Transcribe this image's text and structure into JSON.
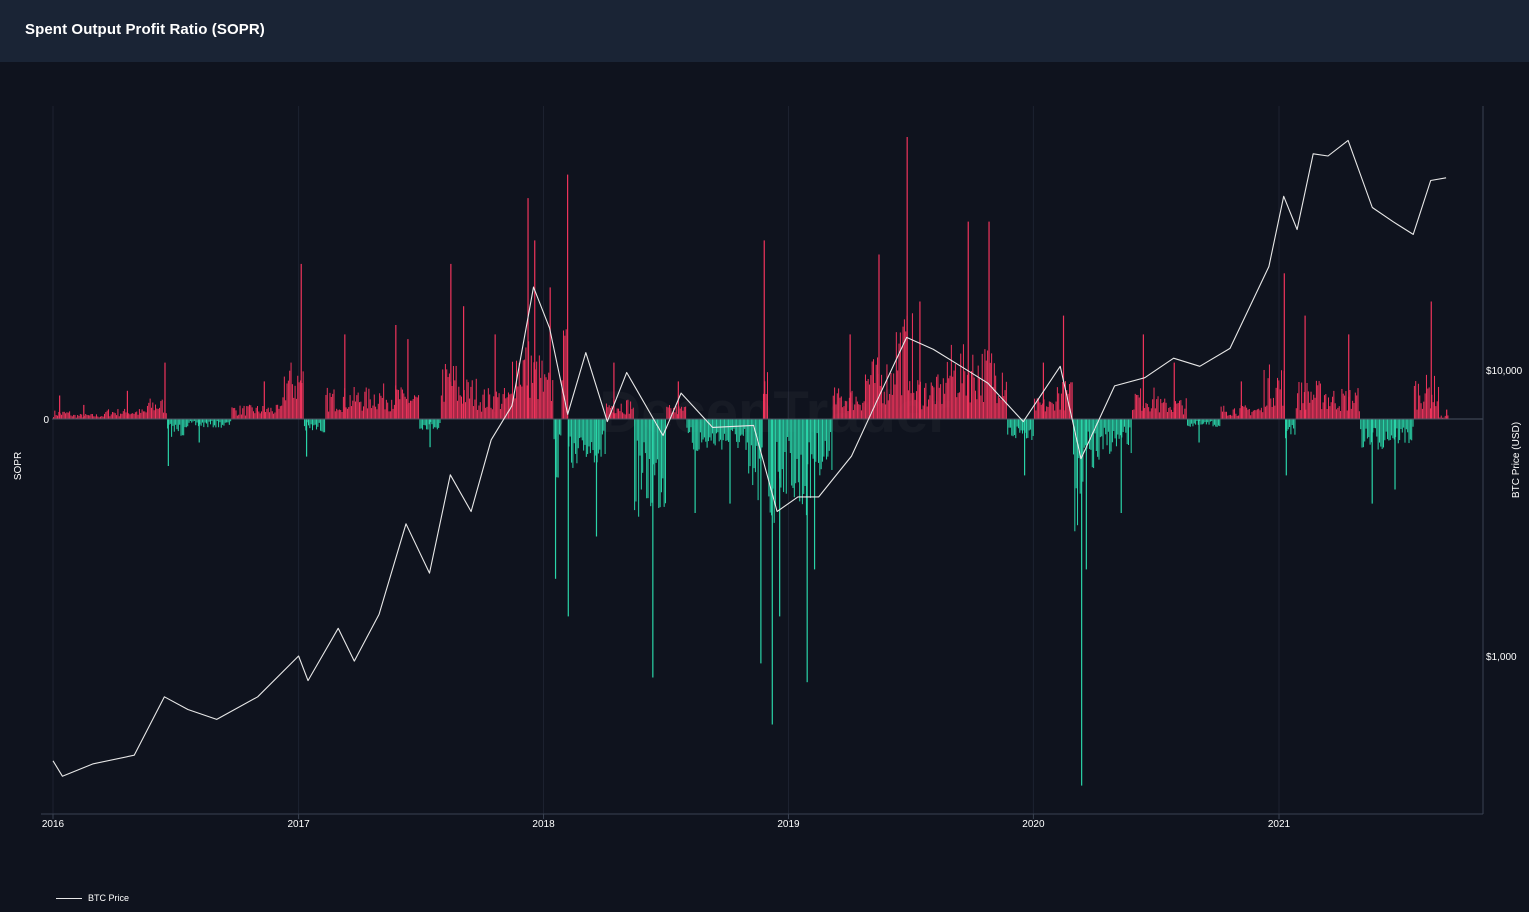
{
  "header": {
    "title": "Spent Output Profit Ratio (SOPR)"
  },
  "legend": {
    "btc_price_label": "BTC Price"
  },
  "colors": {
    "background": "#0f131e",
    "header_bg": "#1a2435",
    "positive_bar": "#f0345c",
    "negative_bar": "#2ad4a8",
    "price_line": "#e8e8e8",
    "grid": "#1c2230"
  },
  "chart_data": {
    "type": "bar",
    "title": "Spent Output Profit Ratio (SOPR)",
    "ylabel": "SOPR",
    "y2label": "BTC Price (USD)",
    "y2scale": "log",
    "xlabel": "",
    "x_ticks": [
      "2016",
      "2017",
      "2018",
      "2019",
      "2020",
      "2021"
    ],
    "y_ticks": [
      "0"
    ],
    "y2_ticks": [
      "$1,000",
      "$10,000"
    ],
    "grid": "vertical",
    "legend": "bottom-left",
    "series": [
      {
        "kind": "bar",
        "note": "SOPR deviation bars, positive (red) above 0 and negative (green) below 0, relative scale",
        "points": [
          [
            "2016-01-10",
            0.05
          ],
          [
            "2016-02-15",
            0.03
          ],
          [
            "2016-04-20",
            0.06
          ],
          [
            "2016-06-15",
            0.12
          ],
          [
            "2016-06-20",
            -0.1
          ],
          [
            "2016-08-05",
            -0.05
          ],
          [
            "2016-11-10",
            0.08
          ],
          [
            "2017-01-04",
            0.33
          ],
          [
            "2017-01-12",
            -0.08
          ],
          [
            "2017-03-10",
            0.18
          ],
          [
            "2017-05-25",
            0.2
          ],
          [
            "2017-06-12",
            0.17
          ],
          [
            "2017-07-15",
            -0.06
          ],
          [
            "2017-08-15",
            0.33
          ],
          [
            "2017-09-03",
            0.24
          ],
          [
            "2017-10-20",
            0.18
          ],
          [
            "2017-12-08",
            0.47
          ],
          [
            "2017-12-18",
            0.38
          ],
          [
            "2018-01-10",
            0.28
          ],
          [
            "2018-01-18",
            -0.34
          ],
          [
            "2018-02-05",
            0.52
          ],
          [
            "2018-02-06",
            -0.42
          ],
          [
            "2018-03-20",
            -0.25
          ],
          [
            "2018-04-15",
            0.12
          ],
          [
            "2018-06-12",
            -0.55
          ],
          [
            "2018-07-20",
            0.08
          ],
          [
            "2018-08-14",
            -0.2
          ],
          [
            "2018-10-05",
            -0.18
          ],
          [
            "2018-11-20",
            -0.52
          ],
          [
            "2018-11-25",
            0.38
          ],
          [
            "2018-12-07",
            -0.65
          ],
          [
            "2018-12-18",
            -0.42
          ],
          [
            "2019-01-28",
            -0.56
          ],
          [
            "2019-02-08",
            -0.32
          ],
          [
            "2019-04-02",
            0.18
          ],
          [
            "2019-05-15",
            0.35
          ],
          [
            "2019-06-26",
            0.6
          ],
          [
            "2019-07-15",
            0.25
          ],
          [
            "2019-09-25",
            0.42
          ],
          [
            "2019-10-26",
            0.42
          ],
          [
            "2019-12-18",
            -0.12
          ],
          [
            "2020-01-15",
            0.12
          ],
          [
            "2020-02-14",
            0.22
          ],
          [
            "2020-03-12",
            -0.78
          ],
          [
            "2020-03-19",
            -0.32
          ],
          [
            "2020-05-10",
            -0.2
          ],
          [
            "2020-06-12",
            0.18
          ],
          [
            "2020-07-28",
            0.12
          ],
          [
            "2020-09-03",
            -0.05
          ],
          [
            "2020-11-05",
            0.08
          ],
          [
            "2021-01-08",
            0.31
          ],
          [
            "2021-01-11",
            -0.12
          ],
          [
            "2021-02-08",
            0.22
          ],
          [
            "2021-04-14",
            0.18
          ],
          [
            "2021-05-19",
            -0.18
          ],
          [
            "2021-06-22",
            -0.15
          ],
          [
            "2021-08-15",
            0.25
          ],
          [
            "2021-09-07",
            0.02
          ]
        ]
      },
      {
        "name": "BTC Price",
        "kind": "line",
        "axis": "y2",
        "points": [
          [
            "2016-01-01",
            430
          ],
          [
            "2016-01-15",
            380
          ],
          [
            "2016-03-01",
            420
          ],
          [
            "2016-05-01",
            450
          ],
          [
            "2016-06-15",
            720
          ],
          [
            "2016-07-20",
            650
          ],
          [
            "2016-09-01",
            600
          ],
          [
            "2016-11-01",
            720
          ],
          [
            "2017-01-01",
            1000
          ],
          [
            "2017-01-15",
            820
          ],
          [
            "2017-03-01",
            1250
          ],
          [
            "2017-03-25",
            960
          ],
          [
            "2017-05-01",
            1400
          ],
          [
            "2017-06-10",
            2900
          ],
          [
            "2017-07-15",
            1950
          ],
          [
            "2017-08-15",
            4300
          ],
          [
            "2017-09-15",
            3200
          ],
          [
            "2017-10-15",
            5700
          ],
          [
            "2017-11-15",
            7500
          ],
          [
            "2017-12-17",
            19500
          ],
          [
            "2018-01-10",
            14000
          ],
          [
            "2018-02-06",
            7000
          ],
          [
            "2018-03-05",
            11500
          ],
          [
            "2018-04-06",
            6600
          ],
          [
            "2018-05-05",
            9800
          ],
          [
            "2018-06-28",
            5900
          ],
          [
            "2018-07-25",
            8300
          ],
          [
            "2018-09-10",
            6300
          ],
          [
            "2018-11-10",
            6400
          ],
          [
            "2018-12-15",
            3200
          ],
          [
            "2019-01-15",
            3600
          ],
          [
            "2019-02-15",
            3600
          ],
          [
            "2019-04-05",
            5000
          ],
          [
            "2019-05-15",
            8000
          ],
          [
            "2019-06-26",
            13000
          ],
          [
            "2019-08-05",
            11800
          ],
          [
            "2019-09-15",
            10300
          ],
          [
            "2019-10-25",
            9000
          ],
          [
            "2019-12-17",
            6600
          ],
          [
            "2020-02-10",
            10300
          ],
          [
            "2020-03-12",
            4900
          ],
          [
            "2020-05-01",
            8800
          ],
          [
            "2020-06-15",
            9400
          ],
          [
            "2020-07-28",
            11000
          ],
          [
            "2020-09-05",
            10300
          ],
          [
            "2020-10-20",
            11900
          ],
          [
            "2020-12-17",
            23000
          ],
          [
            "2021-01-08",
            40500
          ],
          [
            "2021-01-28",
            31000
          ],
          [
            "2021-02-21",
            57000
          ],
          [
            "2021-03-15",
            56000
          ],
          [
            "2021-04-14",
            63500
          ],
          [
            "2021-05-20",
            37000
          ],
          [
            "2021-06-20",
            33000
          ],
          [
            "2021-07-20",
            29800
          ],
          [
            "2021-08-15",
            46000
          ],
          [
            "2021-09-07",
            47000
          ]
        ]
      }
    ]
  }
}
